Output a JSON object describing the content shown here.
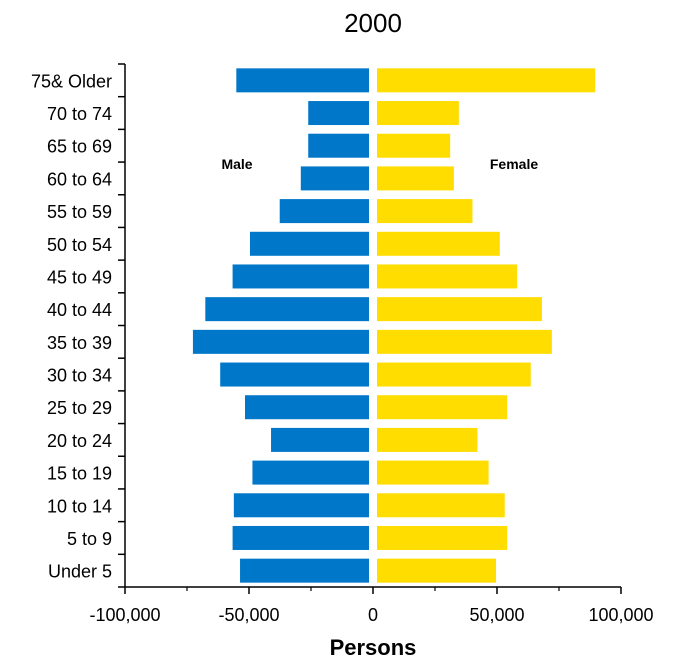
{
  "chart_data": {
    "type": "bar",
    "orientation": "horizontal",
    "layout": "population-pyramid",
    "title": "2000",
    "xlabel": "Persons",
    "ylabel": "",
    "xlim": [
      -100000,
      100000
    ],
    "xticks": [
      -100000,
      -50000,
      0,
      50000,
      100000
    ],
    "xtick_labels": [
      "-100,000",
      "-50,000",
      "0",
      "50,000",
      "100,000"
    ],
    "categories": [
      "Under 5",
      "5 to 9",
      "10 to 14",
      "15 to 19",
      "20 to 24",
      "25 to 29",
      "30 to 34",
      "35 to 39",
      "40 to 44",
      "45 to 49",
      "50 to 54",
      "55 to 59",
      "60 to 64",
      "65 to 69",
      "70 to 74",
      "75& Older"
    ],
    "series": [
      {
        "name": "Male",
        "color": "#0077c8",
        "values": [
          -52000,
          -55000,
          -54500,
          -47000,
          -39500,
          -50000,
          -60000,
          -71000,
          -66000,
          -55000,
          -48000,
          -36000,
          -27500,
          -24500,
          -24500,
          -53500
        ]
      },
      {
        "name": "Female",
        "color": "#ffdd00",
        "values": [
          48000,
          52500,
          51500,
          45000,
          40500,
          52500,
          62000,
          70500,
          66500,
          56500,
          49500,
          38500,
          31000,
          29500,
          33000,
          88000
        ]
      }
    ],
    "grid": false,
    "legend": "none"
  }
}
